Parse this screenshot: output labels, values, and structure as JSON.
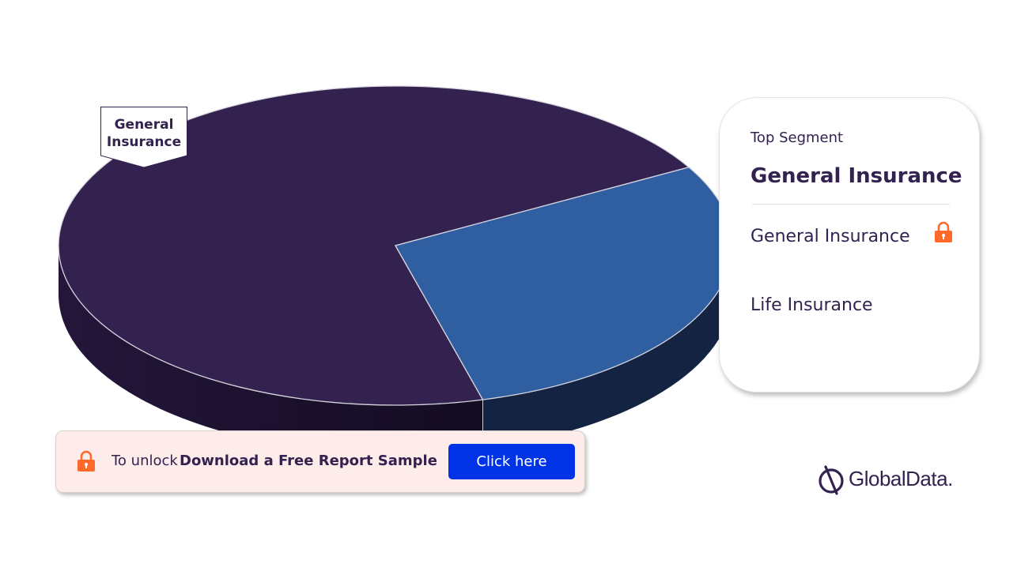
{
  "chart_data": {
    "type": "pie",
    "variant": "3d",
    "categories": [
      "General Insurance",
      "Life Insurance"
    ],
    "values": [
      71,
      29
    ],
    "colors": {
      "General Insurance": "#33214f",
      "Life Insurance": "#2f5ea1"
    },
    "side_colors": {
      "General Insurance": "#24163a",
      "Life Insurance": "#152342"
    },
    "callout_label": "General\nInsurance"
  },
  "segment_card": {
    "subtitle": "Top Segment",
    "top_segment": "General Insurance",
    "items": [
      {
        "label": "General Insurance",
        "locked": true
      },
      {
        "label": "Life Insurance",
        "locked": false
      }
    ]
  },
  "banner": {
    "prefix": "To unlock",
    "main": "Download a Free Report Sample",
    "button_label": "Click here"
  },
  "brand": {
    "logo_text": "GlobalData.",
    "accent": "#ff6a2b",
    "dark": "#33214f",
    "button": "#0033e6"
  }
}
